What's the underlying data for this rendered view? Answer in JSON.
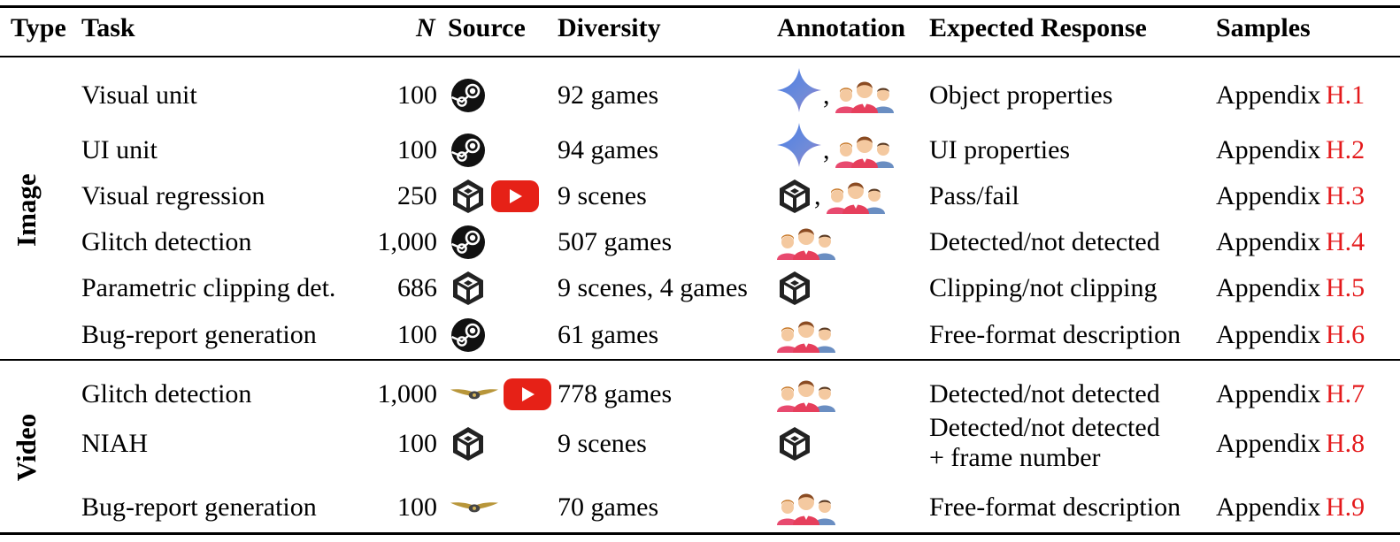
{
  "header": {
    "type": "Type",
    "task": "Task",
    "n": "N",
    "source": "Source",
    "diversity": "Diversity",
    "annotation": "Annotation",
    "expected": "Expected Response",
    "samples": "Samples"
  },
  "groups": [
    {
      "label": "Image",
      "rows": [
        {
          "task": "Visual unit",
          "n": "100",
          "sources": [
            "steam-icon"
          ],
          "diversity": "92 games",
          "annotation": [
            "gemini-sparkle-icon",
            "human-annotators-icon"
          ],
          "expected": "Object properties",
          "samples_prefix": "Appendix",
          "samples_ref": "H.1"
        },
        {
          "task": "UI unit",
          "n": "100",
          "sources": [
            "steam-icon"
          ],
          "diversity": "94 games",
          "annotation": [
            "gemini-sparkle-icon",
            "human-annotators-icon"
          ],
          "expected": "UI properties",
          "samples_prefix": "Appendix",
          "samples_ref": "H.2"
        },
        {
          "task": "Visual regression",
          "n": "250",
          "sources": [
            "unity-icon",
            "youtube-icon"
          ],
          "diversity": "9 scenes",
          "annotation": [
            "unity-icon",
            "human-annotators-icon"
          ],
          "expected": "Pass/fail",
          "samples_prefix": "Appendix",
          "samples_ref": "H.3"
        },
        {
          "task": "Glitch detection",
          "n": "1,000",
          "sources": [
            "steam-icon"
          ],
          "diversity": "507 games",
          "annotation": [
            "human-annotators-icon"
          ],
          "expected": "Detected/not detected",
          "samples_prefix": "Appendix",
          "samples_ref": "H.4"
        },
        {
          "task": "Parametric clipping det.",
          "n": "686",
          "sources": [
            "unity-icon"
          ],
          "diversity": "9 scenes, 4 games",
          "annotation": [
            "unity-icon"
          ],
          "expected": "Clipping/not clipping",
          "samples_prefix": "Appendix",
          "samples_ref": "H.5"
        },
        {
          "task": "Bug-report generation",
          "n": "100",
          "sources": [
            "steam-icon"
          ],
          "diversity": "61 games",
          "annotation": [
            "human-annotators-icon"
          ],
          "expected": "Free-format description",
          "samples_prefix": "Appendix",
          "samples_ref": "H.6"
        }
      ]
    },
    {
      "label": "Video",
      "rows": [
        {
          "task": "Glitch detection",
          "n": "1,000",
          "sources": [
            "winged-badge-icon",
            "youtube-icon"
          ],
          "diversity": "778 games",
          "annotation": [
            "human-annotators-icon"
          ],
          "expected": "Detected/not detected",
          "samples_prefix": "Appendix",
          "samples_ref": "H.7"
        },
        {
          "task": "NIAH",
          "n": "100",
          "sources": [
            "unity-icon"
          ],
          "diversity": "9 scenes",
          "annotation": [
            "unity-icon"
          ],
          "expected": "Detected/not detected",
          "expected_line2": "+ frame number",
          "samples_prefix": "Appendix",
          "samples_ref": "H.8"
        },
        {
          "task": "Bug-report generation",
          "n": "100",
          "sources": [
            "winged-badge-icon"
          ],
          "diversity": "70 games",
          "annotation": [
            "human-annotators-icon"
          ],
          "expected": "Free-format description",
          "samples_prefix": "Appendix",
          "samples_ref": "H.9"
        }
      ]
    }
  ],
  "annotation_separator": ","
}
